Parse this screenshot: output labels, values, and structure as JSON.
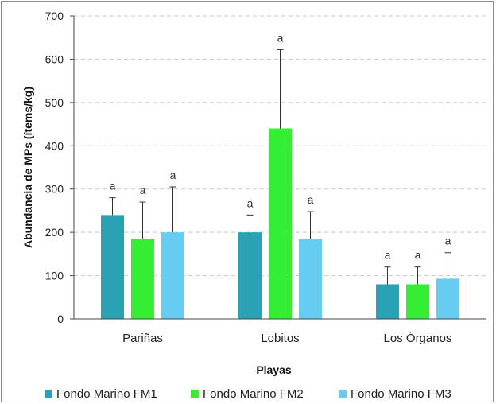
{
  "chart_data": {
    "type": "bar",
    "categories": [
      "Pariñas",
      "Lobitos",
      "Los Órganos"
    ],
    "series": [
      {
        "name": "Fondo Marino FM1",
        "color": "#2aa2b4",
        "values": [
          240,
          200,
          80
        ],
        "errors": [
          40,
          40,
          40
        ],
        "labels": [
          "a",
          "a",
          "a"
        ]
      },
      {
        "name": "Fondo Marino FM2",
        "color": "#33ee33",
        "values": [
          185,
          440,
          80
        ],
        "errors": [
          85,
          182,
          40
        ],
        "labels": [
          "a",
          "a",
          "a"
        ]
      },
      {
        "name": "Fondo Marino FM3",
        "color": "#66ccf2",
        "values": [
          200,
          185,
          93
        ],
        "errors": [
          105,
          63,
          60
        ],
        "labels": [
          "a",
          "a",
          "a"
        ]
      }
    ],
    "xlabel": "Playas",
    "ylabel": "Abundancia de MPs (ítems/kg)",
    "ylim": [
      0,
      700
    ],
    "yticks": [
      0,
      100,
      200,
      300,
      400,
      500,
      600,
      700
    ],
    "grid": true,
    "legend_position": "bottom"
  }
}
